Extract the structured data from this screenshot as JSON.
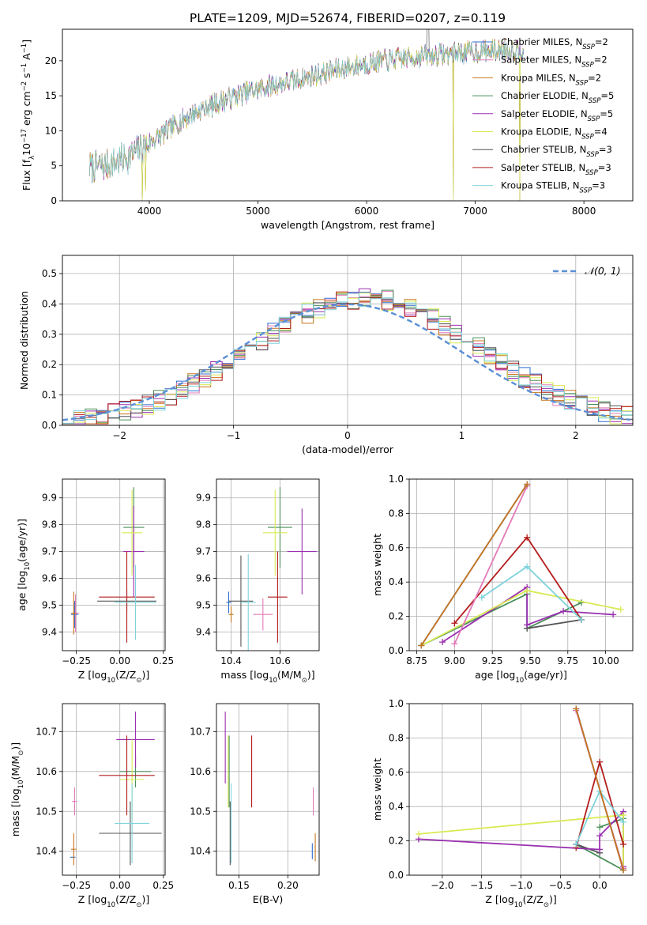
{
  "title": "PLATE=1209, MJD=52674, FIBERID=0207, z=0.119",
  "series": [
    {
      "name": "Chabrier MILES, N",
      "sub": "SSP",
      "suffix": "=2",
      "color": "#2d6fd0"
    },
    {
      "name": "Salpeter MILES, N",
      "sub": "SSP",
      "suffix": "=2",
      "color": "#e27ab8"
    },
    {
      "name": "Kroupa MILES, N",
      "sub": "SSP",
      "suffix": "=2",
      "color": "#c8741c"
    },
    {
      "name": "Chabrier ELODIE, N",
      "sub": "SSP",
      "suffix": "=5",
      "color": "#4a8f5a"
    },
    {
      "name": "Salpeter ELODIE, N",
      "sub": "SSP",
      "suffix": "=5",
      "color": "#9a2fb0"
    },
    {
      "name": "Kroupa ELODIE, N",
      "sub": "SSP",
      "suffix": "=4",
      "color": "#d8ea52"
    },
    {
      "name": "Chabrier STELIB, N",
      "sub": "SSP",
      "suffix": "=3",
      "color": "#555555"
    },
    {
      "name": "Salpeter STELIB, N",
      "sub": "SSP",
      "suffix": "=3",
      "color": "#b31c1c"
    },
    {
      "name": "Kroupa STELIB, N",
      "sub": "SSP",
      "suffix": "=3",
      "color": "#7fd3dc"
    }
  ],
  "chart_data": [
    {
      "id": "spectrum",
      "type": "line",
      "xlabel": "wavelength [Angstrom, rest frame]",
      "ylabel": {
        "main": "Flux [f",
        "lambda": "λ",
        "rest": "10",
        "exp": "−17",
        "units": " erg cm",
        "exp2": "−2",
        "s": " s",
        "exp3": "−1",
        "a": " A",
        "exp4": "−1",
        "close": "]"
      },
      "xlim": [
        3200,
        8450
      ],
      "ylim": [
        0,
        24.5
      ],
      "xticks": [
        4000,
        5000,
        6000,
        7000,
        8000
      ],
      "yticks": [
        0,
        5,
        10,
        15,
        20
      ],
      "grid": false,
      "legend": "top-right",
      "trend": {
        "x": [
          3450,
          3600,
          3800,
          3950,
          4100,
          4300,
          4500,
          4800,
          5100,
          5400,
          5700,
          6000,
          6300,
          6600,
          6900,
          7200,
          7450
        ],
        "y": [
          4.8,
          5.0,
          6.2,
          7.8,
          9.3,
          11.5,
          13.2,
          15.0,
          16.4,
          17.4,
          18.6,
          19.6,
          20.3,
          20.8,
          21.2,
          21.5,
          21.7
        ]
      },
      "dips": [
        {
          "x": 3934,
          "y": 0
        },
        {
          "x": 3968,
          "y": 1.5
        },
        {
          "x": 6800,
          "y": 0
        },
        {
          "x": 7410,
          "y": 0
        }
      ],
      "peak": {
        "x": 6563,
        "y": 24.5
      }
    },
    {
      "id": "residuals",
      "type": "step",
      "xlabel": "(data-model)/error",
      "ylabel": "Normed distribution",
      "xlim": [
        -2.5,
        2.5
      ],
      "ylim": [
        0,
        0.56
      ],
      "xticks": [
        -2,
        -1,
        0,
        1,
        2
      ],
      "xticklabels": [
        "−2",
        "−1",
        "0",
        "1",
        "2"
      ],
      "yticks": [
        0.0,
        0.1,
        0.2,
        0.3,
        0.4,
        0.5
      ],
      "yticklabels": [
        "0.0",
        "0.1",
        "0.2",
        "0.3",
        "0.4",
        "0.5"
      ],
      "grid": true,
      "reference": {
        "name": "𝒩(0, 1)",
        "mean": 0,
        "sigma": 1
      },
      "bin_width": 0.1
    },
    {
      "id": "age-vs-Z",
      "type": "errorbar",
      "xlabel": {
        "main": "Z [log",
        "sub": "10",
        "rest": "(Z/Z",
        "sub2": "⊙",
        "close": ")]"
      },
      "ylabel": {
        "main": "age  [log",
        "sub": "10",
        "rest": "(age/yr)]"
      },
      "xlim": [
        -0.33,
        0.26
      ],
      "ylim": [
        9.33,
        9.97
      ],
      "xticks": [
        -0.25,
        0.0,
        0.25
      ],
      "xticklabels": [
        "−0.25",
        "0.00",
        "0.25"
      ],
      "yticks": [
        9.4,
        9.5,
        9.6,
        9.7,
        9.8,
        9.9
      ],
      "yticklabels": [
        "9.4",
        "9.5",
        "9.6",
        "9.7",
        "9.8",
        "9.9"
      ],
      "grid": true,
      "points": [
        {
          "x": -0.26,
          "y": 9.465,
          "xerr": 0.02,
          "yerr": 0.05,
          "s": 0
        },
        {
          "x": -0.255,
          "y": 9.47,
          "xerr": 0.02,
          "yerr": 0.07,
          "s": 1
        },
        {
          "x": -0.265,
          "y": 9.47,
          "xerr": 0.015,
          "yerr": 0.08,
          "s": 2
        },
        {
          "x": 0.08,
          "y": 9.79,
          "xerr": 0.06,
          "yerr": 0.15,
          "s": 3
        },
        {
          "x": 0.08,
          "y": 9.7,
          "xerr": 0.06,
          "yerr": 0.17,
          "s": 4
        },
        {
          "x": 0.07,
          "y": 9.77,
          "xerr": 0.06,
          "yerr": 0.16,
          "s": 5
        },
        {
          "x": 0.04,
          "y": 9.515,
          "xerr": 0.17,
          "yerr": 0.04,
          "s": 6
        },
        {
          "x": 0.04,
          "y": 9.53,
          "xerr": 0.16,
          "yerr": 0.17,
          "s": 7
        },
        {
          "x": 0.09,
          "y": 9.51,
          "xerr": 0.12,
          "yerr": 0.14,
          "s": 8
        }
      ]
    },
    {
      "id": "age-vs-mass",
      "type": "errorbar",
      "xlabel": {
        "main": "mass [log",
        "sub": "10",
        "rest": "(M/M",
        "sub2": "⊙",
        "close": ")]"
      },
      "ylabel": "",
      "xlim": [
        10.34,
        10.76
      ],
      "ylim": [
        9.33,
        9.97
      ],
      "xticks": [
        10.4,
        10.6
      ],
      "xticklabels": [
        "10.4",
        "10.6"
      ],
      "yticks": [
        9.4,
        9.5,
        9.6,
        9.7,
        9.8,
        9.9
      ],
      "yticklabels": [
        "9.4",
        "9.5",
        "9.6",
        "9.7",
        "9.8",
        "9.9"
      ],
      "grid": true,
      "points": [
        {
          "x": 10.39,
          "y": 9.51,
          "xerr": 0.01,
          "yerr": 0.04,
          "s": 0
        },
        {
          "x": 10.53,
          "y": 9.465,
          "xerr": 0.04,
          "yerr": 0.06,
          "s": 1
        },
        {
          "x": 10.4,
          "y": 9.465,
          "xerr": 0.01,
          "yerr": 0.03,
          "s": 2
        },
        {
          "x": 10.6,
          "y": 9.79,
          "xerr": 0.05,
          "yerr": 0.15,
          "s": 3
        },
        {
          "x": 10.69,
          "y": 9.7,
          "xerr": 0.06,
          "yerr": 0.16,
          "s": 4
        },
        {
          "x": 10.58,
          "y": 9.77,
          "xerr": 0.05,
          "yerr": 0.16,
          "s": 5
        },
        {
          "x": 10.44,
          "y": 9.515,
          "xerr": 0.05,
          "yerr": 0.17,
          "s": 6
        },
        {
          "x": 10.59,
          "y": 9.53,
          "xerr": 0.04,
          "yerr": 0.17,
          "s": 7
        },
        {
          "x": 10.47,
          "y": 9.51,
          "xerr": 0.03,
          "yerr": 0.18,
          "s": 8
        }
      ]
    },
    {
      "id": "mass-weight-vs-age",
      "type": "line",
      "xlabel": {
        "main": "age  [log",
        "sub": "10",
        "rest": "(age/yr)]"
      },
      "ylabel": "mass weight",
      "xlim": [
        8.7,
        10.18
      ],
      "ylim": [
        0,
        1.0
      ],
      "xticks": [
        8.75,
        9.0,
        9.25,
        9.5,
        9.75,
        10.0
      ],
      "xticklabels": [
        "8.75",
        "9.00",
        "9.25",
        "9.50",
        "9.75",
        "10.00"
      ],
      "yticks": [
        0.0,
        0.2,
        0.4,
        0.6,
        0.8,
        1.0
      ],
      "yticklabels": [
        "0.0",
        "0.2",
        "0.4",
        "0.6",
        "0.8",
        "1.0"
      ],
      "grid": true,
      "lines": [
        {
          "s": 0,
          "x": [
            8.78,
            9.48
          ],
          "y": [
            0.03,
            0.97
          ]
        },
        {
          "s": 1,
          "x": [
            9.0,
            9.48
          ],
          "y": [
            0.04,
            0.96
          ]
        },
        {
          "s": 2,
          "x": [
            8.78,
            9.48
          ],
          "y": [
            0.03,
            0.97
          ]
        },
        {
          "s": 3,
          "x": [
            8.78,
            9.48,
            9.48,
            9.84
          ],
          "y": [
            0.03,
            0.33,
            0.13,
            0.28
          ]
        },
        {
          "s": 4,
          "x": [
            8.92,
            9.48,
            9.48,
            9.72,
            10.05
          ],
          "y": [
            0.05,
            0.37,
            0.15,
            0.23,
            0.21
          ]
        },
        {
          "s": 5,
          "x": [
            8.78,
            9.48,
            10.1
          ],
          "y": [
            0.03,
            0.35,
            0.24
          ]
        },
        {
          "s": 6,
          "x": [
            9.48,
            9.84
          ],
          "y": [
            0.13,
            0.18
          ]
        },
        {
          "s": 7,
          "x": [
            9.0,
            9.48,
            9.84
          ],
          "y": [
            0.16,
            0.66,
            0.18
          ]
        },
        {
          "s": 8,
          "x": [
            9.18,
            9.48,
            9.84
          ],
          "y": [
            0.31,
            0.49,
            0.18
          ]
        }
      ]
    },
    {
      "id": "mass-vs-Z",
      "type": "errorbar",
      "xlabel": {
        "main": "Z [log",
        "sub": "10",
        "rest": "(Z/Z",
        "sub2": "⊙",
        "close": ")]"
      },
      "ylabel": {
        "main": "mass [log",
        "sub": "10",
        "rest": "(M/M",
        "sub2": "⊙",
        "close": ")]"
      },
      "xlim": [
        -0.33,
        0.26
      ],
      "ylim": [
        10.34,
        10.77
      ],
      "xticks": [
        -0.25,
        0.0,
        0.25
      ],
      "xticklabels": [
        "−0.25",
        "0.00",
        "0.25"
      ],
      "yticks": [
        10.4,
        10.5,
        10.6,
        10.7
      ],
      "yticklabels": [
        "10.4",
        "10.5",
        "10.6",
        "10.7"
      ],
      "grid": true,
      "points": [
        {
          "x": -0.27,
          "y": 10.385,
          "xerr": 0.015,
          "yerr": 0.0,
          "s": 0
        },
        {
          "x": -0.26,
          "y": 10.525,
          "xerr": 0.015,
          "yerr": 0.035,
          "s": 1
        },
        {
          "x": -0.265,
          "y": 10.405,
          "xerr": 0.015,
          "yerr": 0.04,
          "s": 2
        },
        {
          "x": 0.09,
          "y": 10.6,
          "xerr": 0.09,
          "yerr": 0.04,
          "s": 3
        },
        {
          "x": 0.09,
          "y": 10.68,
          "xerr": 0.11,
          "yerr": 0.07,
          "s": 4
        },
        {
          "x": 0.07,
          "y": 10.58,
          "xerr": 0.07,
          "yerr": 0.1,
          "s": 5
        },
        {
          "x": 0.06,
          "y": 10.445,
          "xerr": 0.18,
          "yerr": 0.08,
          "s": 6
        },
        {
          "x": 0.04,
          "y": 10.59,
          "xerr": 0.16,
          "yerr": 0.1,
          "s": 7
        },
        {
          "x": 0.07,
          "y": 10.47,
          "xerr": 0.1,
          "yerr": 0.1,
          "s": 8
        }
      ]
    },
    {
      "id": "mass-vs-ebv",
      "type": "errorbar",
      "xlabel": "E(B-V)",
      "ylabel": "",
      "xlim": [
        0.127,
        0.232
      ],
      "ylim": [
        10.34,
        10.77
      ],
      "xticks": [
        0.15,
        0.2
      ],
      "xticklabels": [
        "0.15",
        "0.20"
      ],
      "yticks": [
        10.4,
        10.5,
        10.6,
        10.7
      ],
      "yticklabels": [
        "10.4",
        "10.5",
        "10.6",
        "10.7"
      ],
      "grid": true,
      "points": [
        {
          "x": 0.225,
          "y": 10.4,
          "xerr": 0,
          "yerr": 0.02,
          "s": 0
        },
        {
          "x": 0.226,
          "y": 10.525,
          "xerr": 0,
          "yerr": 0.035,
          "s": 1
        },
        {
          "x": 0.228,
          "y": 10.41,
          "xerr": 0,
          "yerr": 0.035,
          "s": 2
        },
        {
          "x": 0.14,
          "y": 10.6,
          "xerr": 0,
          "yerr": 0.09,
          "s": 3
        },
        {
          "x": 0.136,
          "y": 10.66,
          "xerr": 0,
          "yerr": 0.09,
          "s": 4
        },
        {
          "x": 0.139,
          "y": 10.6,
          "xerr": 0,
          "yerr": 0.09,
          "s": 5
        },
        {
          "x": 0.141,
          "y": 10.445,
          "xerr": 0,
          "yerr": 0.08,
          "s": 6
        },
        {
          "x": 0.163,
          "y": 10.6,
          "xerr": 0,
          "yerr": 0.09,
          "s": 7
        },
        {
          "x": 0.142,
          "y": 10.47,
          "xerr": 0,
          "yerr": 0.1,
          "s": 8
        }
      ]
    },
    {
      "id": "mass-weight-vs-Z",
      "type": "line",
      "xlabel": {
        "main": "Z [log",
        "sub": "10",
        "rest": "(Z/Z",
        "sub2": "⊙",
        "close": ")]"
      },
      "ylabel": "mass weight",
      "xlim": [
        -2.42,
        0.42
      ],
      "ylim": [
        0,
        1.0
      ],
      "xticks": [
        -2.0,
        -1.5,
        -1.0,
        -0.5,
        0.0
      ],
      "xticklabels": [
        "−2.0",
        "−1.5",
        "−1.0",
        "−0.5",
        "0.0"
      ],
      "yticks": [
        0.0,
        0.2,
        0.4,
        0.6,
        0.8,
        1.0
      ],
      "yticklabels": [
        "0.0",
        "0.2",
        "0.4",
        "0.6",
        "0.8",
        "1.0"
      ],
      "grid": true,
      "lines": [
        {
          "s": 0,
          "x": [
            -0.3,
            0.3
          ],
          "y": [
            0.97,
            0.03
          ]
        },
        {
          "s": 1,
          "x": [
            -0.3,
            0.3
          ],
          "y": [
            0.96,
            0.04
          ]
        },
        {
          "s": 2,
          "x": [
            -0.3,
            0.3
          ],
          "y": [
            0.97,
            0.03
          ]
        },
        {
          "s": 3,
          "x": [
            0.0,
            0.3,
            0.3,
            -0.3
          ],
          "y": [
            0.28,
            0.33,
            0.03,
            0.18
          ]
        },
        {
          "s": 4,
          "x": [
            -2.3,
            0.0,
            0.0,
            0.3,
            0.3
          ],
          "y": [
            0.21,
            0.15,
            0.23,
            0.37,
            0.05
          ]
        },
        {
          "s": 5,
          "x": [
            -2.3,
            0.3,
            0.3
          ],
          "y": [
            0.24,
            0.35,
            0.03
          ]
        },
        {
          "s": 6,
          "x": [
            -0.3,
            0.0
          ],
          "y": [
            0.18,
            0.13
          ]
        },
        {
          "s": 7,
          "x": [
            -0.3,
            0.0,
            0.3
          ],
          "y": [
            0.16,
            0.66,
            0.18
          ]
        },
        {
          "s": 8,
          "x": [
            -0.3,
            0.0,
            0.3
          ],
          "y": [
            0.18,
            0.49,
            0.31
          ]
        }
      ]
    }
  ]
}
